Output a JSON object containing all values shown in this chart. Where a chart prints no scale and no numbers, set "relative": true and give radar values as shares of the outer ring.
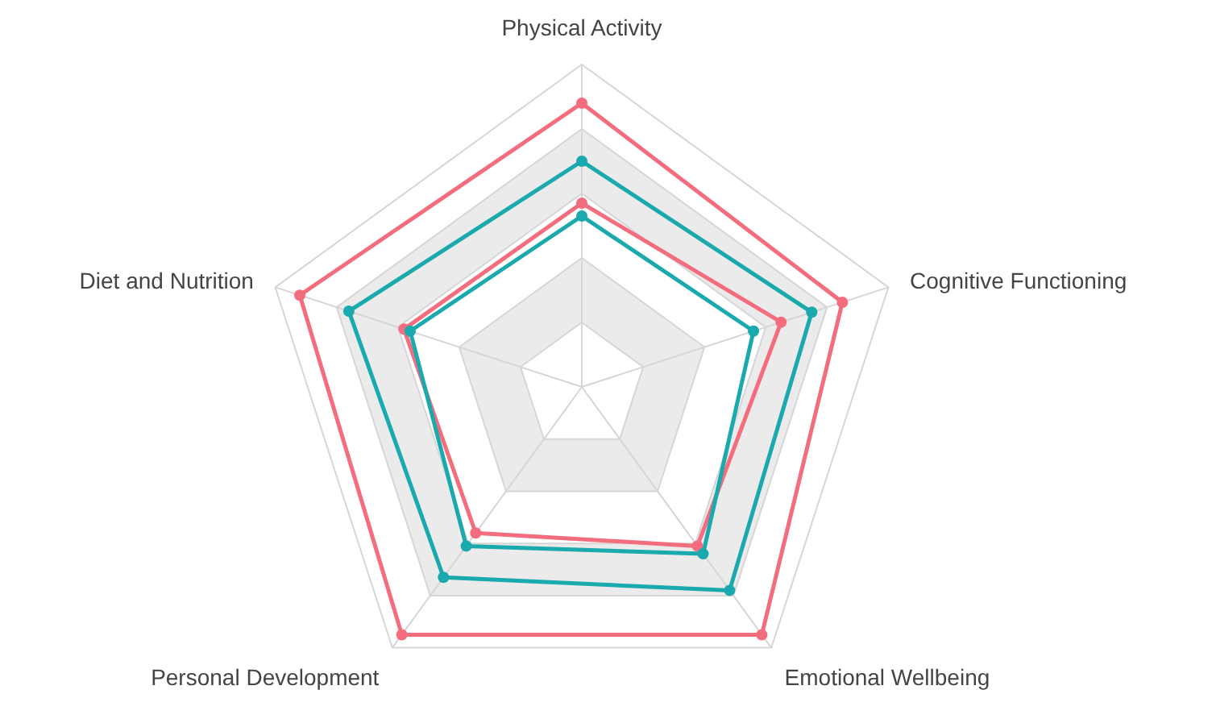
{
  "chart_data": {
    "type": "radar",
    "relative": true,
    "grid": true,
    "marker": "circle",
    "line_style": "solid",
    "categories": [
      "Physical Activity",
      "Cognitive Functioning",
      "Emotional Wellbeing",
      "Personal Development",
      "Diet and Nutrition"
    ],
    "series": [
      {
        "color": "#f46d7e",
        "values": [
          0.88,
          0.85,
          0.95,
          0.95,
          0.92
        ]
      },
      {
        "color": "#1aa9ad",
        "values": [
          0.7,
          0.75,
          0.78,
          0.73,
          0.76
        ]
      },
      {
        "color": "#f46d7e",
        "values": [
          0.57,
          0.65,
          0.61,
          0.56,
          0.58
        ]
      },
      {
        "color": "#1aa9ad",
        "values": [
          0.53,
          0.56,
          0.64,
          0.61,
          0.56
        ]
      }
    ]
  }
}
